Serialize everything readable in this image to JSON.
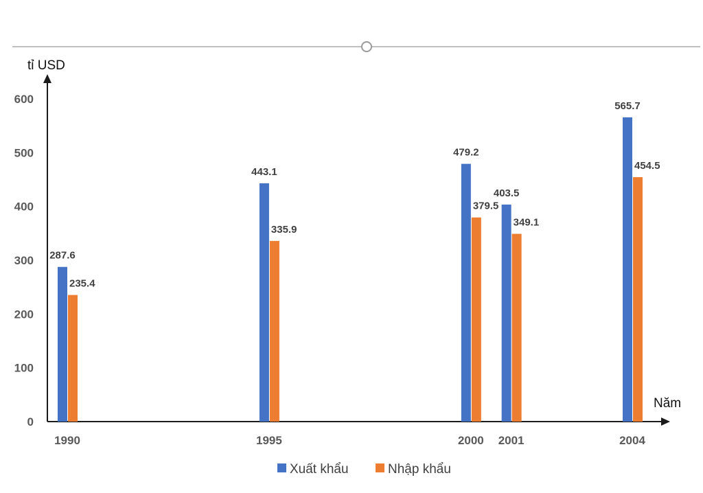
{
  "chart_data": {
    "type": "bar",
    "title": "",
    "ylabel": "tỉ USD",
    "xlabel": "Năm",
    "x": [
      1990,
      1995,
      2000,
      2001,
      2004
    ],
    "categories": [
      "1990",
      "1995",
      "2000",
      "2001",
      "2004"
    ],
    "ylim": [
      0,
      600
    ],
    "yticks": [
      0,
      100,
      200,
      300,
      400,
      500,
      600
    ],
    "x_range": [
      1990,
      2004
    ],
    "legend_position": "bottom",
    "grid": false,
    "series": [
      {
        "name": "Xuất khẩu",
        "color": "#4472C4",
        "values": [
          287.6,
          443.1,
          479.2,
          403.5,
          565.7
        ]
      },
      {
        "name": "Nhập khẩu",
        "color": "#ED7D31",
        "values": [
          235.4,
          335.9,
          379.5,
          349.1,
          454.5
        ]
      }
    ]
  }
}
